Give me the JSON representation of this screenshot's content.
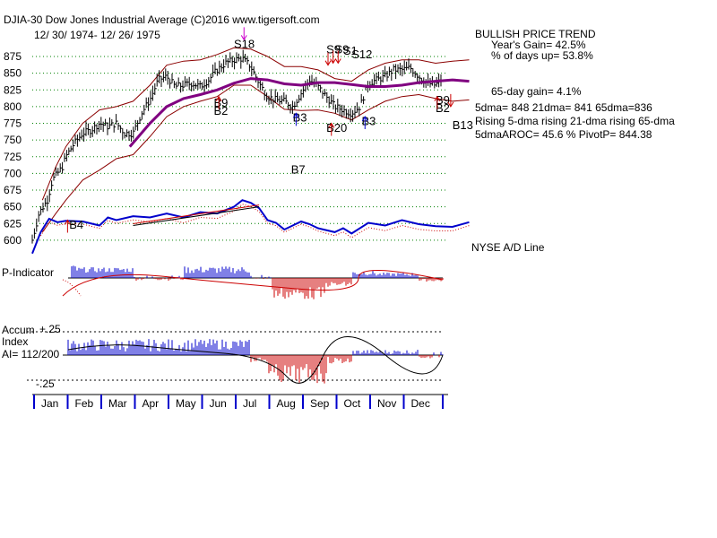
{
  "header": {
    "title": "DJIA-30  Dow Jones Industrial Average   (C)2016 www.tigersoft.com",
    "date_range": "12/ 30/ 1974- 12/ 26/ 1975"
  },
  "side_panel": {
    "trend": "BULLISH PRICE TREND",
    "years_gain": "Year's Gain= 42.5%",
    "days_up": "% of days up= 53.8%",
    "gain65": "65-day gain= 4.1%",
    "dma": "5dma= 848 21dma= 841 65dma=836",
    "rising": "Rising 5-dma rising 21-dma rising 65-dma",
    "aroc": "5dmaAROC= 45.6 %  PivotP= 844.38",
    "ad_line": "NYSE A/D Line"
  },
  "panels": {
    "p_indicator": "P-Indicator",
    "accum": "Accum",
    "index": "Index",
    "ai": "AI= 112/200",
    "plus25": "+.25",
    "minus25": "-.25"
  },
  "colors": {
    "price": "#000000",
    "band": "#8b0000",
    "ma65": "#800080",
    "ad_line": "#0000cc",
    "red_signal": "#cc0000",
    "blue_signal": "#0000cc",
    "grid": "#008000"
  },
  "chart_data": {
    "type": "line",
    "title": "DJIA-30  Dow Jones Industrial Average",
    "subtitle": "12/ 30/ 1974- 12/ 26/ 1975",
    "ylim": [
      590,
      900
    ],
    "y_ticks": [
      600,
      625,
      650,
      675,
      700,
      725,
      750,
      775,
      800,
      825,
      850,
      875
    ],
    "x_ticks": [
      "Jan",
      "Feb",
      "Mar",
      "Apr",
      "May",
      "Jun",
      "Jul",
      "Aug",
      "Sep",
      "Oct",
      "Nov",
      "Dec"
    ],
    "price_points": [
      [
        0,
        600
      ],
      [
        0.2,
        640
      ],
      [
        0.45,
        660
      ],
      [
        0.6,
        690
      ],
      [
        0.9,
        710
      ],
      [
        1.0,
        725
      ],
      [
        1.25,
        745
      ],
      [
        1.5,
        760
      ],
      [
        1.75,
        765
      ],
      [
        2.0,
        775
      ],
      [
        2.25,
        770
      ],
      [
        2.5,
        775
      ],
      [
        2.75,
        760
      ],
      [
        3.0,
        760
      ],
      [
        3.25,
        790
      ],
      [
        3.5,
        810
      ],
      [
        3.75,
        840
      ],
      [
        4.0,
        845
      ],
      [
        4.25,
        830
      ],
      [
        4.5,
        832
      ],
      [
        4.75,
        835
      ],
      [
        5.0,
        830
      ],
      [
        5.25,
        840
      ],
      [
        5.5,
        855
      ],
      [
        5.75,
        865
      ],
      [
        6.0,
        870
      ],
      [
        6.25,
        872
      ],
      [
        6.5,
        860
      ],
      [
        6.75,
        835
      ],
      [
        7.0,
        815
      ],
      [
        7.25,
        810
      ],
      [
        7.5,
        808
      ],
      [
        7.75,
        800
      ],
      [
        8.0,
        820
      ],
      [
        8.25,
        840
      ],
      [
        8.5,
        830
      ],
      [
        8.75,
        815
      ],
      [
        9.0,
        800
      ],
      [
        9.25,
        795
      ],
      [
        9.5,
        790
      ],
      [
        9.75,
        800
      ],
      [
        10.0,
        835
      ],
      [
        10.25,
        840
      ],
      [
        10.5,
        845
      ],
      [
        10.75,
        855
      ],
      [
        11.0,
        855
      ],
      [
        11.25,
        858
      ],
      [
        11.5,
        845
      ],
      [
        11.75,
        835
      ],
      [
        12.0,
        832
      ],
      [
        12.25,
        845
      ],
      [
        12.5,
        850
      ],
      [
        12.75,
        852
      ],
      [
        13.0,
        858
      ]
    ],
    "ma65_points": [
      [
        2.9,
        740
      ],
      [
        3.5,
        775
      ],
      [
        4.0,
        800
      ],
      [
        4.5,
        812
      ],
      [
        5.0,
        818
      ],
      [
        5.5,
        825
      ],
      [
        6.0,
        835
      ],
      [
        6.5,
        842
      ],
      [
        7.0,
        840
      ],
      [
        7.5,
        834
      ],
      [
        8.0,
        832
      ],
      [
        8.5,
        836
      ],
      [
        9.0,
        836
      ],
      [
        9.5,
        833
      ],
      [
        10.0,
        830
      ],
      [
        10.5,
        830
      ],
      [
        11.0,
        832
      ],
      [
        11.5,
        836
      ],
      [
        12.0,
        838
      ],
      [
        12.5,
        840
      ],
      [
        13.0,
        838
      ]
    ],
    "upper_band_points": [
      [
        0.3,
        660
      ],
      [
        0.7,
        710
      ],
      [
        1.0,
        740
      ],
      [
        1.5,
        775
      ],
      [
        2.0,
        795
      ],
      [
        2.5,
        800
      ],
      [
        3.0,
        808
      ],
      [
        3.5,
        832
      ],
      [
        4.0,
        862
      ],
      [
        4.5,
        868
      ],
      [
        5.0,
        870
      ],
      [
        5.5,
        878
      ],
      [
        6.0,
        888
      ],
      [
        6.5,
        886
      ],
      [
        7.0,
        875
      ],
      [
        7.5,
        860
      ],
      [
        8.0,
        860
      ],
      [
        8.5,
        855
      ],
      [
        9.0,
        842
      ],
      [
        9.5,
        838
      ],
      [
        10.0,
        855
      ],
      [
        10.5,
        865
      ],
      [
        11.0,
        870
      ],
      [
        11.5,
        870
      ],
      [
        12.0,
        865
      ],
      [
        12.5,
        868
      ],
      [
        13.0,
        870
      ]
    ],
    "lower_band_points": [
      [
        0.3,
        612
      ],
      [
        0.7,
        640
      ],
      [
        1.0,
        660
      ],
      [
        1.5,
        690
      ],
      [
        2.0,
        705
      ],
      [
        2.5,
        722
      ],
      [
        3.0,
        728
      ],
      [
        3.5,
        755
      ],
      [
        4.0,
        785
      ],
      [
        4.5,
        800
      ],
      [
        5.0,
        808
      ],
      [
        5.5,
        815
      ],
      [
        6.0,
        832
      ],
      [
        6.5,
        832
      ],
      [
        7.0,
        815
      ],
      [
        7.5,
        796
      ],
      [
        8.0,
        794
      ],
      [
        8.5,
        795
      ],
      [
        9.0,
        790
      ],
      [
        9.5,
        780
      ],
      [
        10.0,
        795
      ],
      [
        10.5,
        808
      ],
      [
        11.0,
        815
      ],
      [
        11.5,
        818
      ],
      [
        12.0,
        812
      ],
      [
        12.5,
        808
      ],
      [
        13.0,
        810
      ]
    ],
    "ad_line_points": [
      [
        0,
        580
      ],
      [
        0.25,
        612
      ],
      [
        0.5,
        632
      ],
      [
        0.75,
        627
      ],
      [
        1.0,
        629
      ],
      [
        1.5,
        628
      ],
      [
        2.0,
        622
      ],
      [
        2.25,
        634
      ],
      [
        2.5,
        630
      ],
      [
        3.0,
        636
      ],
      [
        3.5,
        634
      ],
      [
        4.0,
        640
      ],
      [
        4.5,
        634
      ],
      [
        5.0,
        642
      ],
      [
        5.5,
        640
      ],
      [
        6.0,
        650
      ],
      [
        6.25,
        660
      ],
      [
        6.5,
        656
      ],
      [
        6.75,
        648
      ],
      [
        7.0,
        630
      ],
      [
        7.25,
        626
      ],
      [
        7.5,
        616
      ],
      [
        7.75,
        622
      ],
      [
        8.0,
        628
      ],
      [
        8.25,
        624
      ],
      [
        8.5,
        618
      ],
      [
        9.0,
        612
      ],
      [
        9.25,
        618
      ],
      [
        9.5,
        610
      ],
      [
        10.0,
        626
      ],
      [
        10.5,
        622
      ],
      [
        11.0,
        630
      ],
      [
        11.5,
        624
      ],
      [
        12.0,
        621
      ],
      [
        12.5,
        620
      ],
      [
        13.0,
        627
      ]
    ],
    "trendline": [
      [
        3.0,
        622
      ],
      [
        6.75,
        650
      ]
    ],
    "signals": [
      {
        "label": "S18",
        "x": 6.0,
        "y": 888,
        "color": "black"
      },
      {
        "label": "S9",
        "x": 8.75,
        "y": 880,
        "color": "black"
      },
      {
        "label": "S9",
        "x": 9.0,
        "y": 880,
        "color": "black"
      },
      {
        "label": "S1",
        "x": 9.25,
        "y": 878,
        "color": "black"
      },
      {
        "label": "S12",
        "x": 9.5,
        "y": 872,
        "color": "black"
      },
      {
        "label": "B9",
        "x": 5.4,
        "y": 800,
        "color": "black"
      },
      {
        "label": "B2",
        "x": 5.4,
        "y": 788,
        "color": "black"
      },
      {
        "label": "B3",
        "x": 7.75,
        "y": 778,
        "color": "black"
      },
      {
        "label": "B20",
        "x": 8.75,
        "y": 762,
        "color": "black"
      },
      {
        "label": "B7",
        "x": 7.7,
        "y": 700,
        "color": "black"
      },
      {
        "label": "B3",
        "x": 9.8,
        "y": 772,
        "color": "black"
      },
      {
        "label": "B9",
        "x": 12.0,
        "y": 804,
        "color": "black"
      },
      {
        "label": "B2",
        "x": 12.0,
        "y": 792,
        "color": "black"
      },
      {
        "label": "B13",
        "x": 12.5,
        "y": 766,
        "color": "black"
      },
      {
        "label": "B4",
        "x": 1.1,
        "y": 617,
        "color": "black"
      }
    ],
    "arrows": [
      {
        "x": 1.05,
        "y": 630,
        "color": "red",
        "dir": "up"
      },
      {
        "x": 5.55,
        "y": 815,
        "color": "red",
        "dir": "up"
      },
      {
        "x": 7.85,
        "y": 790,
        "color": "blue",
        "dir": "up"
      },
      {
        "x": 8.9,
        "y": 775,
        "color": "red",
        "dir": "up"
      },
      {
        "x": 9.9,
        "y": 785,
        "color": "blue",
        "dir": "up"
      },
      {
        "x": 12.05,
        "y": 815,
        "color": "red",
        "dir": "up"
      },
      {
        "x": 12.45,
        "y": 800,
        "color": "red",
        "dir": "down"
      },
      {
        "x": 6.3,
        "y": 900,
        "color": "magenta",
        "dir": "down"
      },
      {
        "x": 8.8,
        "y": 862,
        "color": "red",
        "dir": "down"
      },
      {
        "x": 8.95,
        "y": 865,
        "color": "red",
        "dir": "down"
      },
      {
        "x": 9.1,
        "y": 865,
        "color": "red",
        "dir": "down"
      }
    ]
  }
}
